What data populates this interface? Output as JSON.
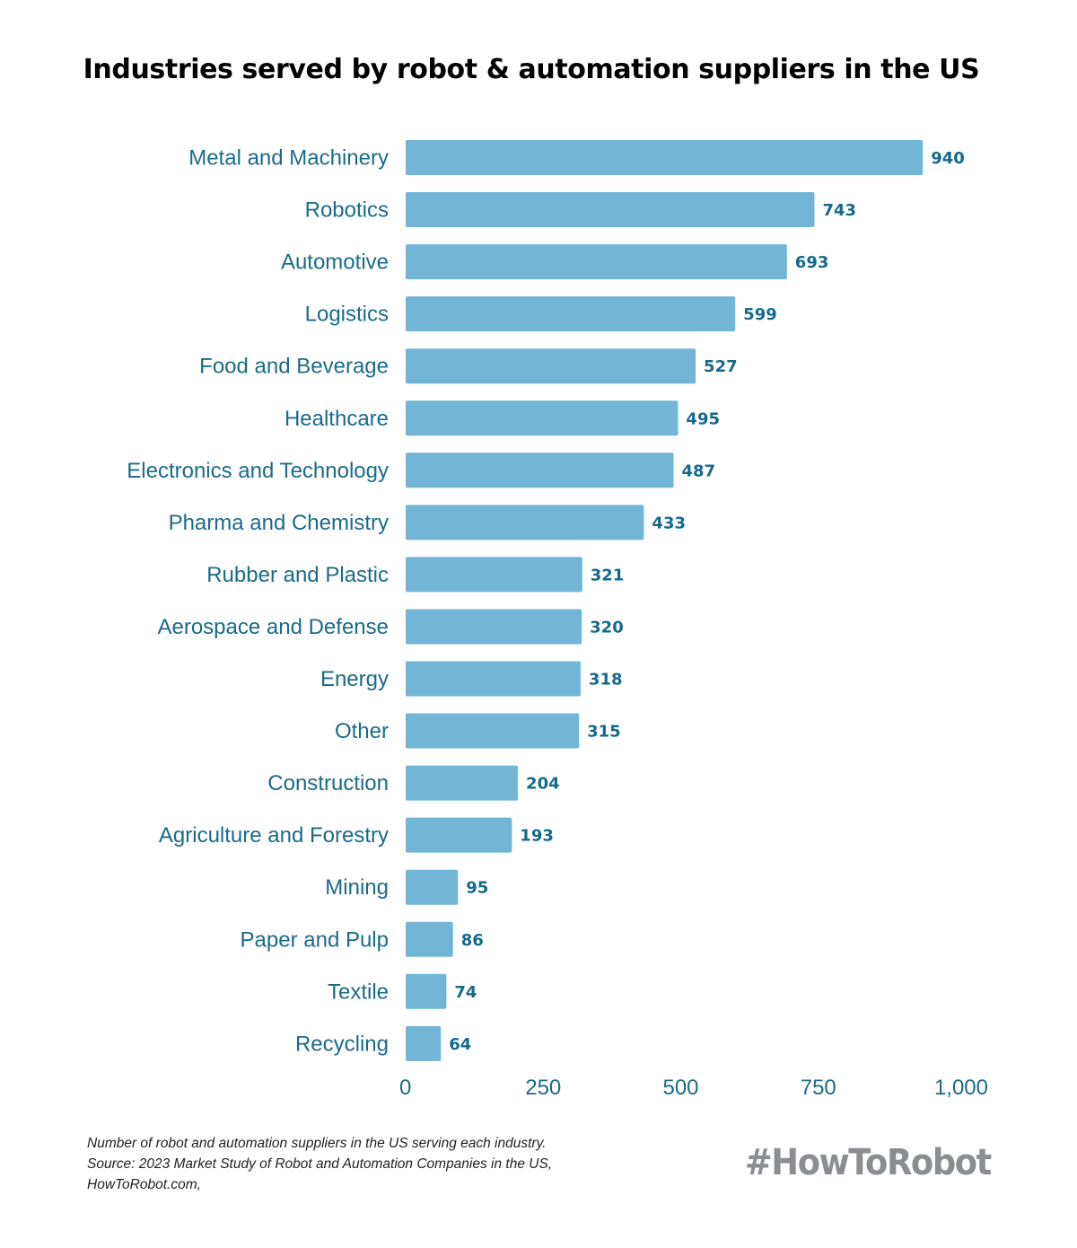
{
  "title": "Industries served by robot & automation suppliers in the US",
  "chart_data": {
    "type": "bar",
    "orientation": "horizontal",
    "title": "Industries served by robot & automation suppliers in the US",
    "xlabel": "",
    "ylabel": "",
    "xlim": [
      0,
      1000
    ],
    "xticks": [
      0,
      250,
      500,
      750,
      1000
    ],
    "xtick_labels": [
      "0",
      "250",
      "500",
      "750",
      "1,000"
    ],
    "grid": false,
    "bar_color": "#72b5d5",
    "label_color": "#1a6b8a",
    "categories": [
      "Metal and Machinery",
      "Robotics",
      "Automotive",
      "Logistics",
      "Food and Beverage",
      "Healthcare",
      "Electronics and Technology",
      "Pharma and Chemistry",
      "Rubber and Plastic",
      "Aerospace and Defense",
      "Energy",
      "Other",
      "Construction",
      "Agriculture and Forestry",
      "Mining",
      "Paper and Pulp",
      "Textile",
      "Recycling"
    ],
    "values": [
      940,
      743,
      693,
      599,
      527,
      495,
      487,
      433,
      321,
      320,
      318,
      315,
      204,
      193,
      95,
      86,
      74,
      64
    ]
  },
  "footnote": {
    "lines": [
      "Number of robot and automation suppliers in the US serving each industry.",
      "Source: 2023 Market Study of Robot and Automation Companies in the US,",
      "HowToRobot.com,"
    ]
  },
  "brand": "#HowToRobot"
}
